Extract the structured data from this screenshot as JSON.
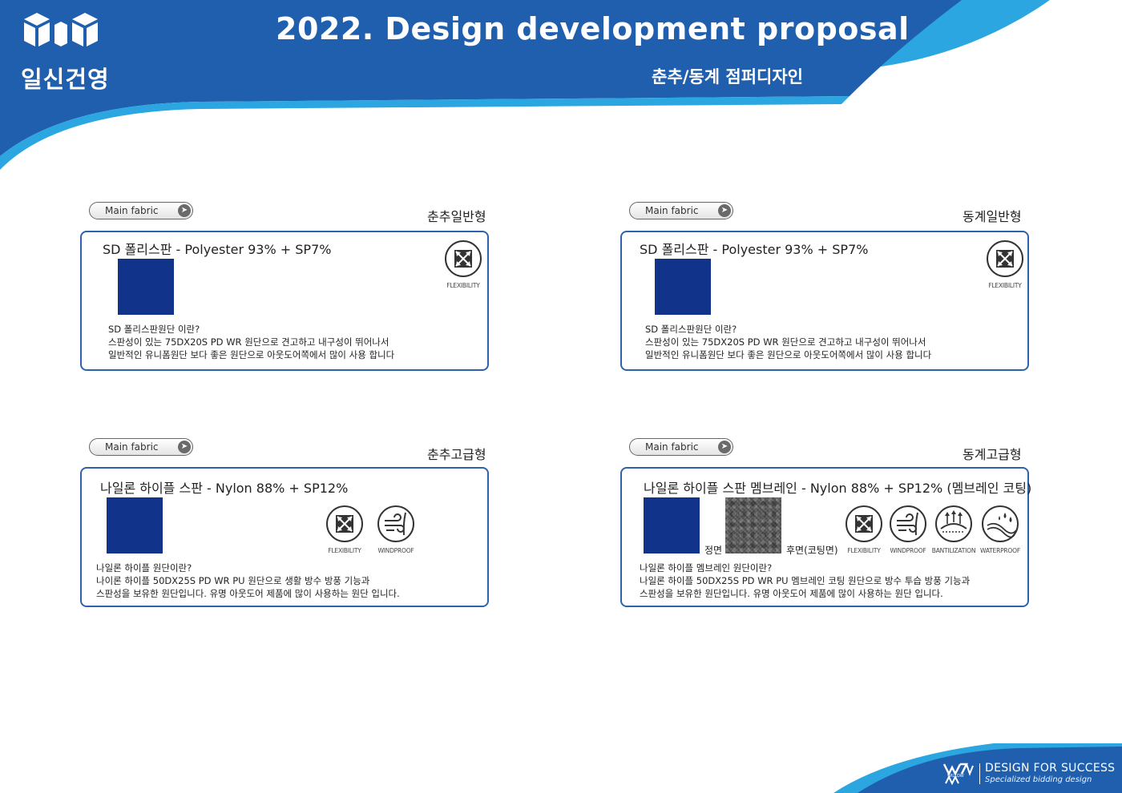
{
  "header": {
    "company": "일신건영",
    "title": "2022. Design development proposal",
    "subtitle": "춘추/동계 점퍼디자인"
  },
  "colors": {
    "header_blue": "#1f5fae",
    "header_light": "#2ba6e0",
    "card_border": "#2f62ad",
    "swatch_blue": "#12338a",
    "swatch_gray": "#5b5b5b"
  },
  "sections": [
    {
      "tag": "Main fabric",
      "type": "춘추일반형",
      "title": "SD 폴리스판 - Polyester 93% + SP7%",
      "swatch_caption": "",
      "features": [
        "FLEXIBILITY"
      ],
      "desc": [
        "SD 폴리스판원단 이란?",
        "스판성이 있는 75DX20S PD WR 원단으로 견고하고 내구성이 뛰어나서",
        "일반적인 유니폼원단 보다 좋은 원단으로 아웃도어쪽에서 많이 사용 합니다"
      ]
    },
    {
      "tag": "Main fabric",
      "type": "동계일반형",
      "title": "SD 폴리스판 - Polyester 93% + SP7%",
      "swatch_caption": "",
      "features": [
        "FLEXIBILITY"
      ],
      "desc": [
        "SD 폴리스판원단 이란?",
        "스판성이 있는 75DX20S PD WR 원단으로 견고하고 내구성이 뛰어나서",
        "일반적인 유니폼원단 보다 좋은 원단으로 아웃도어쪽에서 많이 사용 합니다"
      ]
    },
    {
      "tag": "Main fabric",
      "type": "춘추고급형",
      "title": "나일론 하이플 스판 - Nylon 88% + SP12%",
      "swatch_caption": "",
      "features": [
        "FLEXIBILITY",
        "WINDPROOF"
      ],
      "desc": [
        "나일론 하이플 원단이란?",
        "나이론 하이플 50DX25S PD WR PU  원단으로 생활 방수 방풍 기능과",
        "스판성을 보유한 원단입니다. 유명 아웃도어 제품에 많이 사용하는 원단 입니다."
      ]
    },
    {
      "tag": "Main fabric",
      "type": "동계고급형",
      "title": "나일론 하이플 스판 멤브레인 - Nylon 88% + SP12% (멤브레인 코팅)",
      "swatch_caption": "정면",
      "swatch2_caption": "후면(코팅면)",
      "features": [
        "FLEXIBILITY",
        "WINDPROOF",
        "BANTILIZATION",
        "WATERPROOF"
      ],
      "desc": [
        "나일론 하이플 멤브레인 원단이란?",
        "나일론 하이플 50DX25S PD WR PU 멤브레인 코팅 원단으로 방수 투습  방풍 기능과",
        "스판성을 보유한 원단입니다. 유명 아웃도어 제품에 많이 사용하는 원단 입니다."
      ]
    }
  ],
  "footer": {
    "brand": "WILLOW",
    "slogan": "DESIGN FOR SUCCESS",
    "tagline": "Specialized bidding design"
  },
  "icons": {
    "logo": "cube-logo-icon",
    "tag_arrow": "arrow-right-icon",
    "flexibility": "stretch-arrows-icon",
    "windproof": "wind-icon",
    "bantilization": "ventilation-arrows-icon",
    "waterproof": "water-drops-icon"
  }
}
